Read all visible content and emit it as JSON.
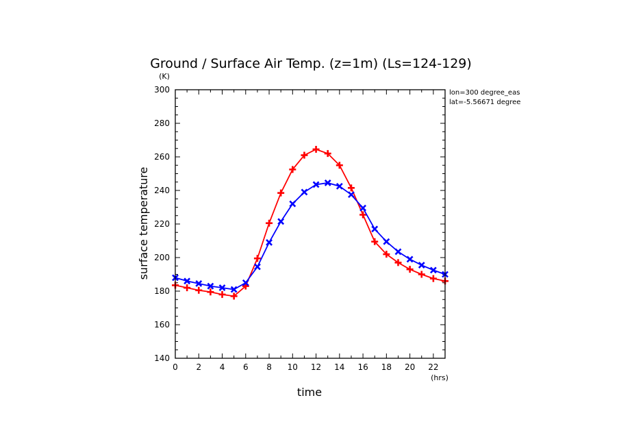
{
  "chart_data": {
    "type": "line",
    "title": "Ground / Surface Air Temp. (z=1m) (Ls=124-129)",
    "xlabel": "time",
    "ylabel": "surface temperature",
    "x_unit": "(hrs)",
    "y_unit": "(K)",
    "xlim": [
      0,
      23
    ],
    "ylim": [
      140,
      300
    ],
    "x_ticks": [
      "0",
      "2",
      "4",
      "6",
      "8",
      "10",
      "12",
      "14",
      "16",
      "18",
      "20",
      "22"
    ],
    "y_ticks": [
      "140",
      "160",
      "180",
      "200",
      "220",
      "240",
      "260",
      "280",
      "300"
    ],
    "annotations": [
      "lon=300 degree_eas",
      "lat=-5.56671 degree"
    ],
    "grid": false,
    "x": [
      0,
      1,
      2,
      3,
      4,
      5,
      6,
      7,
      8,
      9,
      10,
      11,
      12,
      13,
      14,
      15,
      16,
      17,
      18,
      19,
      20,
      21,
      22,
      23
    ],
    "series": [
      {
        "color": "#ff0000",
        "marker": "plus",
        "values": [
          183.5,
          182,
          180.5,
          179.5,
          178,
          177,
          183,
          199.5,
          220.5,
          238.5,
          252.5,
          261,
          264.5,
          262,
          255,
          241.5,
          225.5,
          209.5,
          202,
          197,
          193,
          190,
          187.5,
          186
        ]
      },
      {
        "color": "#0000ff",
        "marker": "x",
        "values": [
          188,
          186,
          184.5,
          183,
          182,
          181,
          185,
          194.5,
          209,
          221.5,
          232,
          239,
          243.5,
          244.5,
          242.5,
          237.5,
          229.5,
          217,
          209.5,
          203.5,
          199,
          195.5,
          192.5,
          190
        ]
      }
    ]
  }
}
